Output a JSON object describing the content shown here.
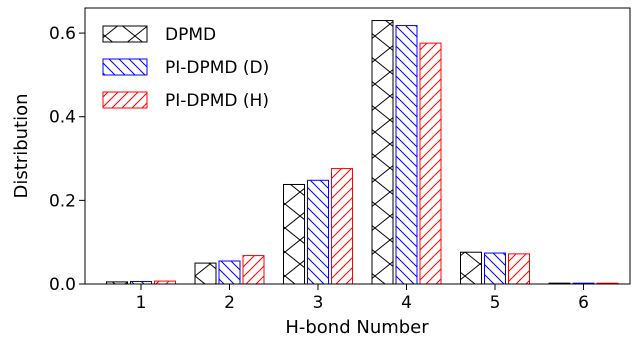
{
  "chart_data": {
    "type": "bar",
    "xlabel": "H-bond Number",
    "ylabel": "Distribution",
    "categories": [
      "1",
      "2",
      "3",
      "4",
      "5",
      "6"
    ],
    "ylim": [
      0,
      0.66
    ],
    "yticks": [
      "0.0",
      "0.2",
      "0.4",
      "0.6"
    ],
    "ytick_values": [
      0.0,
      0.2,
      0.4,
      0.6
    ],
    "legend_position": "top-left",
    "grid": false,
    "series": [
      {
        "name": "DPMD",
        "color": "#000000",
        "hatch": "x",
        "values": [
          0.005,
          0.05,
          0.238,
          0.63,
          0.076,
          0.002
        ]
      },
      {
        "name": "PI-DPMD (D)",
        "color": "#0000ff",
        "hatch": "backslash",
        "values": [
          0.006,
          0.055,
          0.248,
          0.618,
          0.074,
          0.002
        ]
      },
      {
        "name": "PI-DPMD (H)",
        "color": "#ff0000",
        "hatch": "slash",
        "values": [
          0.007,
          0.068,
          0.276,
          0.576,
          0.072,
          0.002
        ]
      }
    ]
  }
}
